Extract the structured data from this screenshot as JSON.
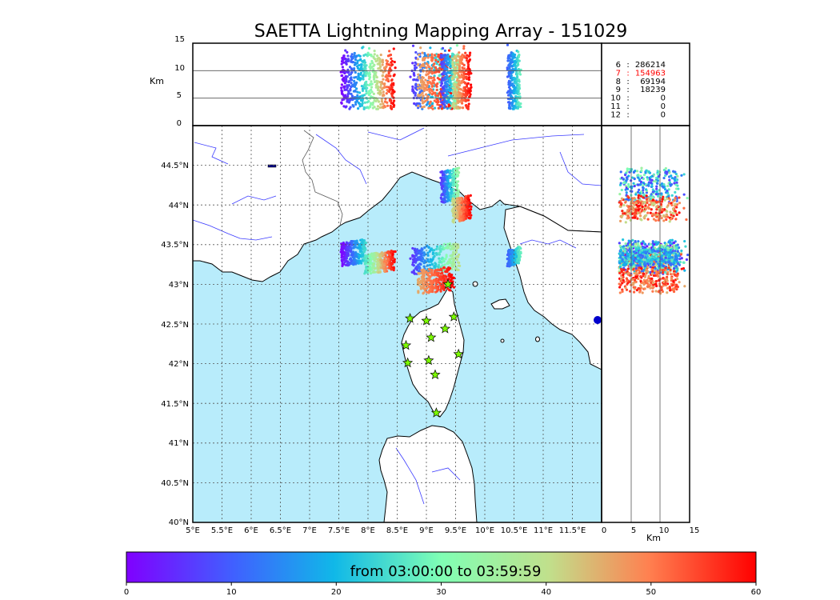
{
  "title": "SAETTA Lightning Mapping Array - 151029",
  "colors": {
    "sea": "#b8ecfb",
    "land": "#ffffff",
    "coast": "#000000",
    "rivers": "#3b3bff",
    "borders": "#555555",
    "grid": "#555555",
    "station": "#7cfc00",
    "highlight_count": "#ff0000"
  },
  "colormap": "rainbow",
  "chart_data": [
    {
      "type": "scatter",
      "panel": "map (longitude vs latitude)",
      "x_ticks": [
        "5°E",
        "5.5°E",
        "6°E",
        "6.5°E",
        "7°E",
        "7.5°E",
        "8°E",
        "8.5°E",
        "9°E",
        "9.5°E",
        "10°E",
        "10.5°E",
        "11°E",
        "11.5°E"
      ],
      "y_ticks": [
        "40°N",
        "40.5°N",
        "41°N",
        "41.5°N",
        "42°N",
        "42.5°N",
        "43°N",
        "43.5°N",
        "44°N",
        "44.5°N"
      ],
      "xlim": [
        5.0,
        12.0
      ],
      "ylim": [
        40.0,
        45.0
      ],
      "grid": true,
      "stations": [
        {
          "lon": 8.72,
          "lat": 42.57
        },
        {
          "lon": 9.0,
          "lat": 42.54
        },
        {
          "lon": 9.47,
          "lat": 42.59
        },
        {
          "lon": 9.08,
          "lat": 42.33
        },
        {
          "lon": 9.32,
          "lat": 42.44
        },
        {
          "lon": 8.65,
          "lat": 42.23
        },
        {
          "lon": 8.68,
          "lat": 42.01
        },
        {
          "lon": 9.04,
          "lat": 42.04
        },
        {
          "lon": 9.55,
          "lat": 42.12
        },
        {
          "lon": 9.15,
          "lat": 41.86
        },
        {
          "lon": 9.17,
          "lat": 41.38
        },
        {
          "lon": 9.37,
          "lat": 43.0
        }
      ],
      "clusters": [
        {
          "lon": [
            7.55,
            7.95
          ],
          "lat": [
            43.25,
            43.55
          ],
          "time_min": [
            0,
            25
          ]
        },
        {
          "lon": [
            7.95,
            8.45
          ],
          "lat": [
            43.15,
            43.4
          ],
          "time_min": [
            25,
            60
          ]
        },
        {
          "lon": [
            8.75,
            9.55
          ],
          "lat": [
            43.15,
            43.5
          ],
          "time_min": [
            5,
            40
          ]
        },
        {
          "lon": [
            8.85,
            9.45
          ],
          "lat": [
            42.9,
            43.2
          ],
          "time_min": [
            45,
            60
          ]
        },
        {
          "lon": [
            9.25,
            9.55
          ],
          "lat": [
            44.05,
            44.45
          ],
          "time_min": [
            5,
            35
          ]
        },
        {
          "lon": [
            9.45,
            9.75
          ],
          "lat": [
            43.8,
            44.1
          ],
          "time_min": [
            40,
            60
          ]
        },
        {
          "lon": [
            10.4,
            10.6
          ],
          "lat": [
            43.25,
            43.45
          ],
          "time_min": [
            10,
            28
          ]
        }
      ]
    },
    {
      "type": "scatter",
      "panel": "longitude vs altitude",
      "ylabel": "Km",
      "y_ticks": [
        "0",
        "5",
        "10",
        "15"
      ],
      "ylim": [
        0,
        15
      ],
      "xlim": [
        5.0,
        12.0
      ],
      "hlines_km": [
        5,
        10
      ]
    },
    {
      "type": "scatter",
      "panel": "altitude vs latitude",
      "xlabel": "Km",
      "x_ticks": [
        "0",
        "5",
        "10",
        "15"
      ],
      "xlim": [
        0,
        15
      ],
      "ylim": [
        40.0,
        45.0
      ],
      "vlines_km": [
        5,
        10
      ]
    },
    {
      "type": "table",
      "panel": "station counts",
      "rows": [
        {
          "stations": "6",
          "sep": ":",
          "count": "286214"
        },
        {
          "stations": "7",
          "sep": ":",
          "count": "154963",
          "highlight": true
        },
        {
          "stations": "8",
          "sep": ":",
          "count": "69194"
        },
        {
          "stations": "9",
          "sep": ":",
          "count": "18239"
        },
        {
          "stations": "10",
          "sep": ":",
          "count": "0"
        },
        {
          "stations": "11",
          "sep": ":",
          "count": "0"
        },
        {
          "stations": "12",
          "sep": ":",
          "count": "0"
        }
      ]
    },
    {
      "type": "colorbar",
      "label": "from 03:00:00 to 03:59:59",
      "ticks": [
        "0",
        "10",
        "20",
        "30",
        "40",
        "50",
        "60"
      ],
      "range": [
        0,
        60
      ]
    }
  ]
}
